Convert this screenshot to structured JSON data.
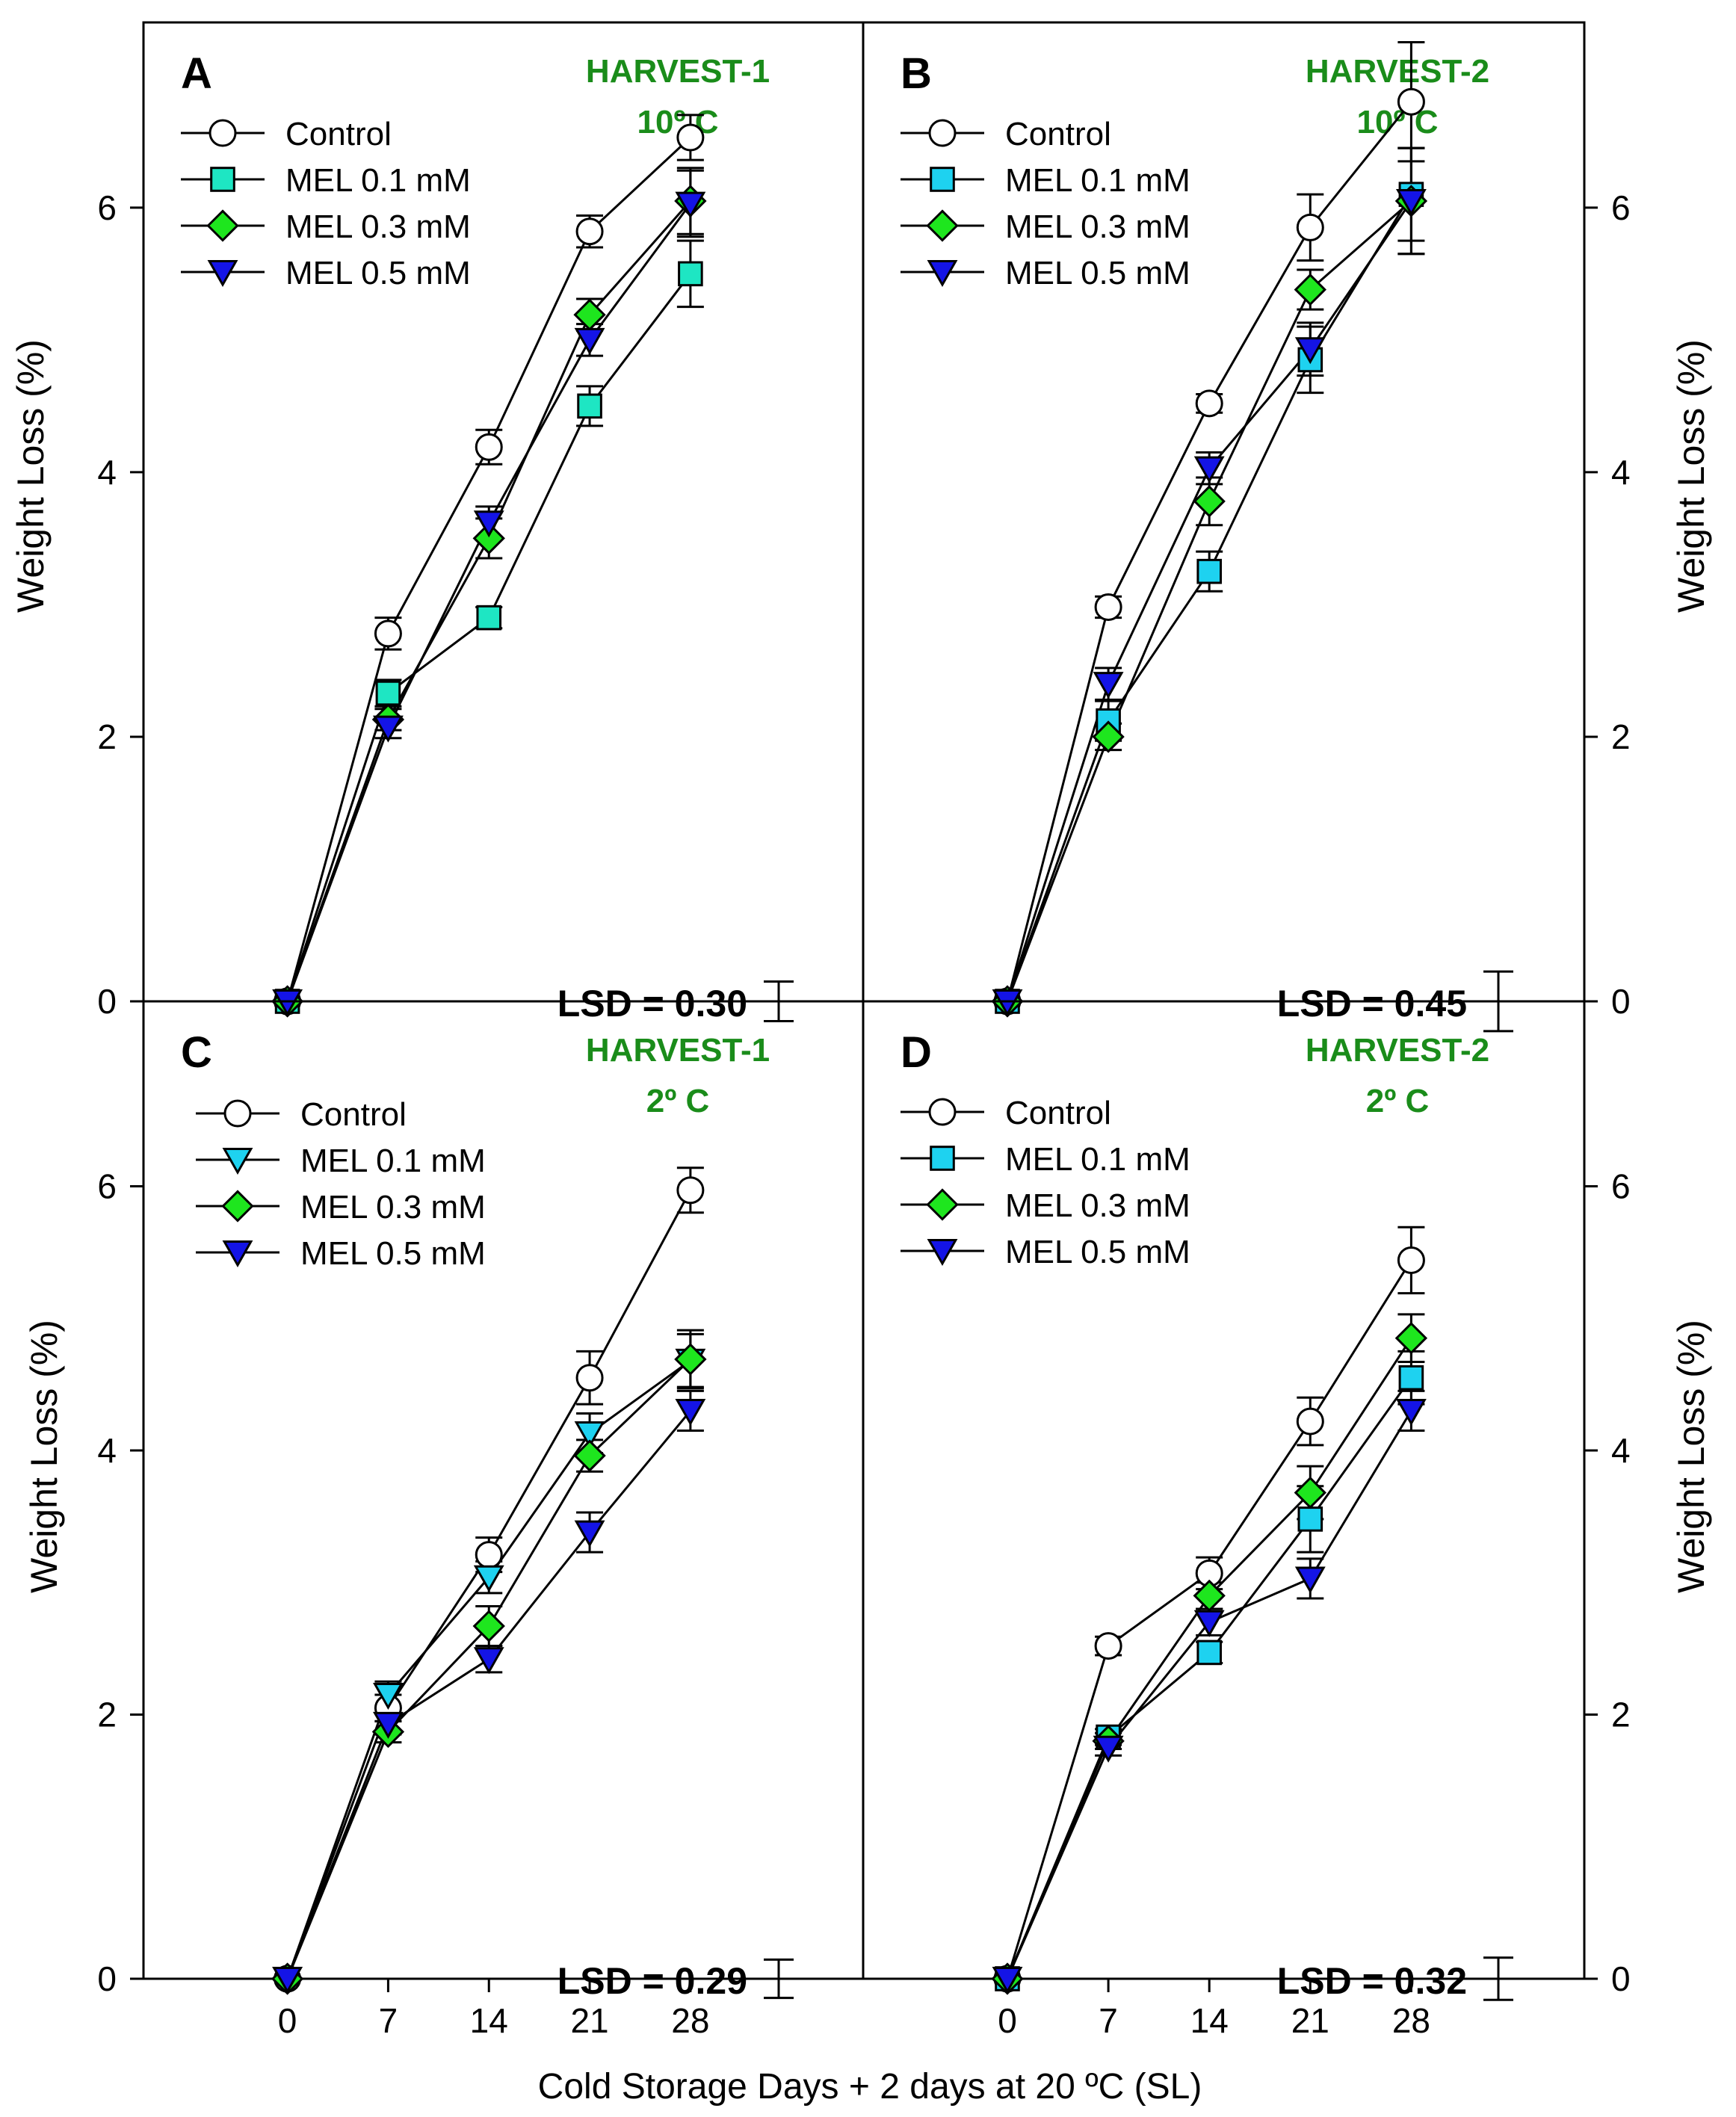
{
  "figure": {
    "xlabel": "Cold Storage Days + 2 days at 20 ºC (SL)",
    "ylabel": "Weight Loss (%)",
    "x_ticks": [
      0,
      7,
      14,
      21,
      28
    ],
    "y_ticks": [
      0,
      2,
      4,
      6
    ],
    "colors": {
      "control": "#ffffff",
      "mel01_teal": "#1ee6c3",
      "mel01_cyan": "#1ed2f0",
      "mel03": "#1ee61e",
      "mel05": "#1414e6",
      "harvest_text": "#1a8c1a",
      "stroke": "#000000"
    }
  },
  "chart_data": [
    {
      "panel": "A",
      "type": "line",
      "title": "HARVEST-1",
      "subtitle": "10º C",
      "lsd": "LSD = 0.30",
      "lsd_value": 0.3,
      "x": [
        0,
        7,
        14,
        21,
        28
      ],
      "xlim": [
        -10,
        40
      ],
      "ylim": [
        0,
        7.4
      ],
      "legend_position": "top-left",
      "series": [
        {
          "name": "Control",
          "marker": "circle",
          "color": "#ffffff",
          "values": [
            0,
            2.78,
            4.19,
            5.82,
            6.53
          ],
          "errors": [
            0,
            0.12,
            0.13,
            0.12,
            0.17
          ]
        },
        {
          "name": "MEL 0.1 mM",
          "marker": "square",
          "color": "#1ee6c3",
          "values": [
            0,
            2.33,
            2.9,
            4.5,
            5.5
          ],
          "errors": [
            0,
            0.1,
            0.08,
            0.15,
            0.25
          ]
        },
        {
          "name": "MEL 0.3 mM",
          "marker": "diamond",
          "color": "#1ee61e",
          "values": [
            0,
            2.13,
            3.5,
            5.19,
            6.05
          ],
          "errors": [
            0,
            0.08,
            0.15,
            0.12,
            0.25
          ]
        },
        {
          "name": "MEL 0.5 mM",
          "marker": "triangle-down",
          "color": "#1414e6",
          "values": [
            0,
            2.07,
            3.62,
            5.0,
            6.03
          ],
          "errors": [
            0,
            0.08,
            0.12,
            0.12,
            0.25
          ]
        }
      ]
    },
    {
      "panel": "B",
      "type": "line",
      "title": "HARVEST-2",
      "subtitle": "10º C",
      "lsd": "LSD = 0.45",
      "lsd_value": 0.45,
      "x": [
        0,
        7,
        14,
        21,
        28
      ],
      "xlim": [
        -10,
        40
      ],
      "ylim": [
        0,
        7.4
      ],
      "legend_position": "top-left",
      "series": [
        {
          "name": "Control",
          "marker": "circle",
          "color": "#ffffff",
          "values": [
            0,
            2.98,
            4.52,
            5.85,
            6.8
          ],
          "errors": [
            0,
            0.08,
            0.07,
            0.25,
            0.45
          ]
        },
        {
          "name": "MEL 0.1 mM",
          "marker": "square",
          "color": "#1ed2f0",
          "values": [
            0,
            2.12,
            3.25,
            4.85,
            6.1
          ],
          "errors": [
            0,
            0.15,
            0.15,
            0.25,
            0.35
          ]
        },
        {
          "name": "MEL 0.3 mM",
          "marker": "diamond",
          "color": "#1ee61e",
          "values": [
            0,
            2.0,
            3.78,
            5.38,
            6.05
          ],
          "errors": [
            0,
            0.1,
            0.18,
            0.15,
            0.4
          ]
        },
        {
          "name": "MEL 0.5 mM",
          "marker": "triangle-down",
          "color": "#1414e6",
          "values": [
            0,
            2.4,
            4.03,
            4.93,
            6.05
          ],
          "errors": [
            0,
            0.12,
            0.12,
            0.2,
            0.4
          ]
        }
      ]
    },
    {
      "panel": "C",
      "type": "line",
      "title": "HARVEST-1",
      "subtitle": "2º C",
      "lsd": "LSD = 0.29",
      "lsd_value": 0.29,
      "x": [
        0,
        7,
        14,
        21,
        28
      ],
      "xlim": [
        -10,
        40
      ],
      "ylim": [
        0,
        7.4
      ],
      "legend_position": "top-left",
      "series": [
        {
          "name": "Control",
          "marker": "circle",
          "color": "#ffffff",
          "values": [
            0,
            2.05,
            3.21,
            4.55,
            5.97
          ],
          "errors": [
            0,
            0.1,
            0.13,
            0.2,
            0.17
          ]
        },
        {
          "name": "MEL 0.1 mM",
          "marker": "triangle-down",
          "color": "#1ed2f0",
          "values": [
            0,
            2.15,
            3.04,
            4.13,
            4.68
          ],
          "errors": [
            0,
            0.1,
            0.12,
            0.15,
            0.2
          ]
        },
        {
          "name": "MEL 0.3 mM",
          "marker": "diamond",
          "color": "#1ee61e",
          "values": [
            0,
            1.87,
            2.67,
            3.96,
            4.69
          ],
          "errors": [
            0,
            0.08,
            0.15,
            0.12,
            0.22
          ]
        },
        {
          "name": "MEL 0.5 mM",
          "marker": "triangle-down",
          "color": "#1414e6",
          "values": [
            0,
            1.93,
            2.42,
            3.38,
            4.3
          ],
          "errors": [
            0,
            0.08,
            0.1,
            0.15,
            0.15
          ]
        }
      ]
    },
    {
      "panel": "D",
      "type": "line",
      "title": "HARVEST-2",
      "subtitle": "2º C",
      "lsd": "LSD = 0.32",
      "lsd_value": 0.32,
      "x": [
        0,
        7,
        14,
        21,
        28
      ],
      "xlim": [
        -10,
        40
      ],
      "ylim": [
        0,
        7.4
      ],
      "legend_position": "top-left",
      "series": [
        {
          "name": "Control",
          "marker": "circle",
          "color": "#ffffff",
          "values": [
            0,
            2.52,
            3.07,
            4.22,
            5.44
          ],
          "errors": [
            0,
            0.07,
            0.12,
            0.18,
            0.25
          ]
        },
        {
          "name": "MEL 0.1 mM",
          "marker": "square",
          "color": "#1ed2f0",
          "values": [
            0,
            1.83,
            2.47,
            3.48,
            4.55
          ],
          "errors": [
            0,
            0.06,
            0.08,
            0.25,
            0.2
          ]
        },
        {
          "name": "MEL 0.3 mM",
          "marker": "diamond",
          "color": "#1ee61e",
          "values": [
            0,
            1.8,
            2.9,
            3.68,
            4.85
          ],
          "errors": [
            0,
            0.06,
            0.1,
            0.2,
            0.18
          ]
        },
        {
          "name": "MEL 0.5 mM",
          "marker": "triangle-down",
          "color": "#1414e6",
          "values": [
            0,
            1.75,
            2.7,
            3.03,
            4.3
          ],
          "errors": [
            0,
            0.06,
            0.1,
            0.15,
            0.15
          ]
        }
      ]
    }
  ]
}
